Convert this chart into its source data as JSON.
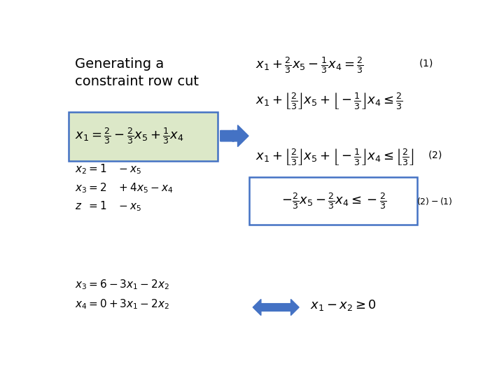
{
  "bg_color": "#ffffff",
  "box1_bg": "#dce8c8",
  "box1_border": "#4472c4",
  "box2_border": "#4472c4",
  "arrow_color": "#4472c4",
  "text_color": "#000000",
  "title_fontsize": 14,
  "eq_fontsize": 13,
  "small_fontsize": 11,
  "label_fontsize": 10
}
